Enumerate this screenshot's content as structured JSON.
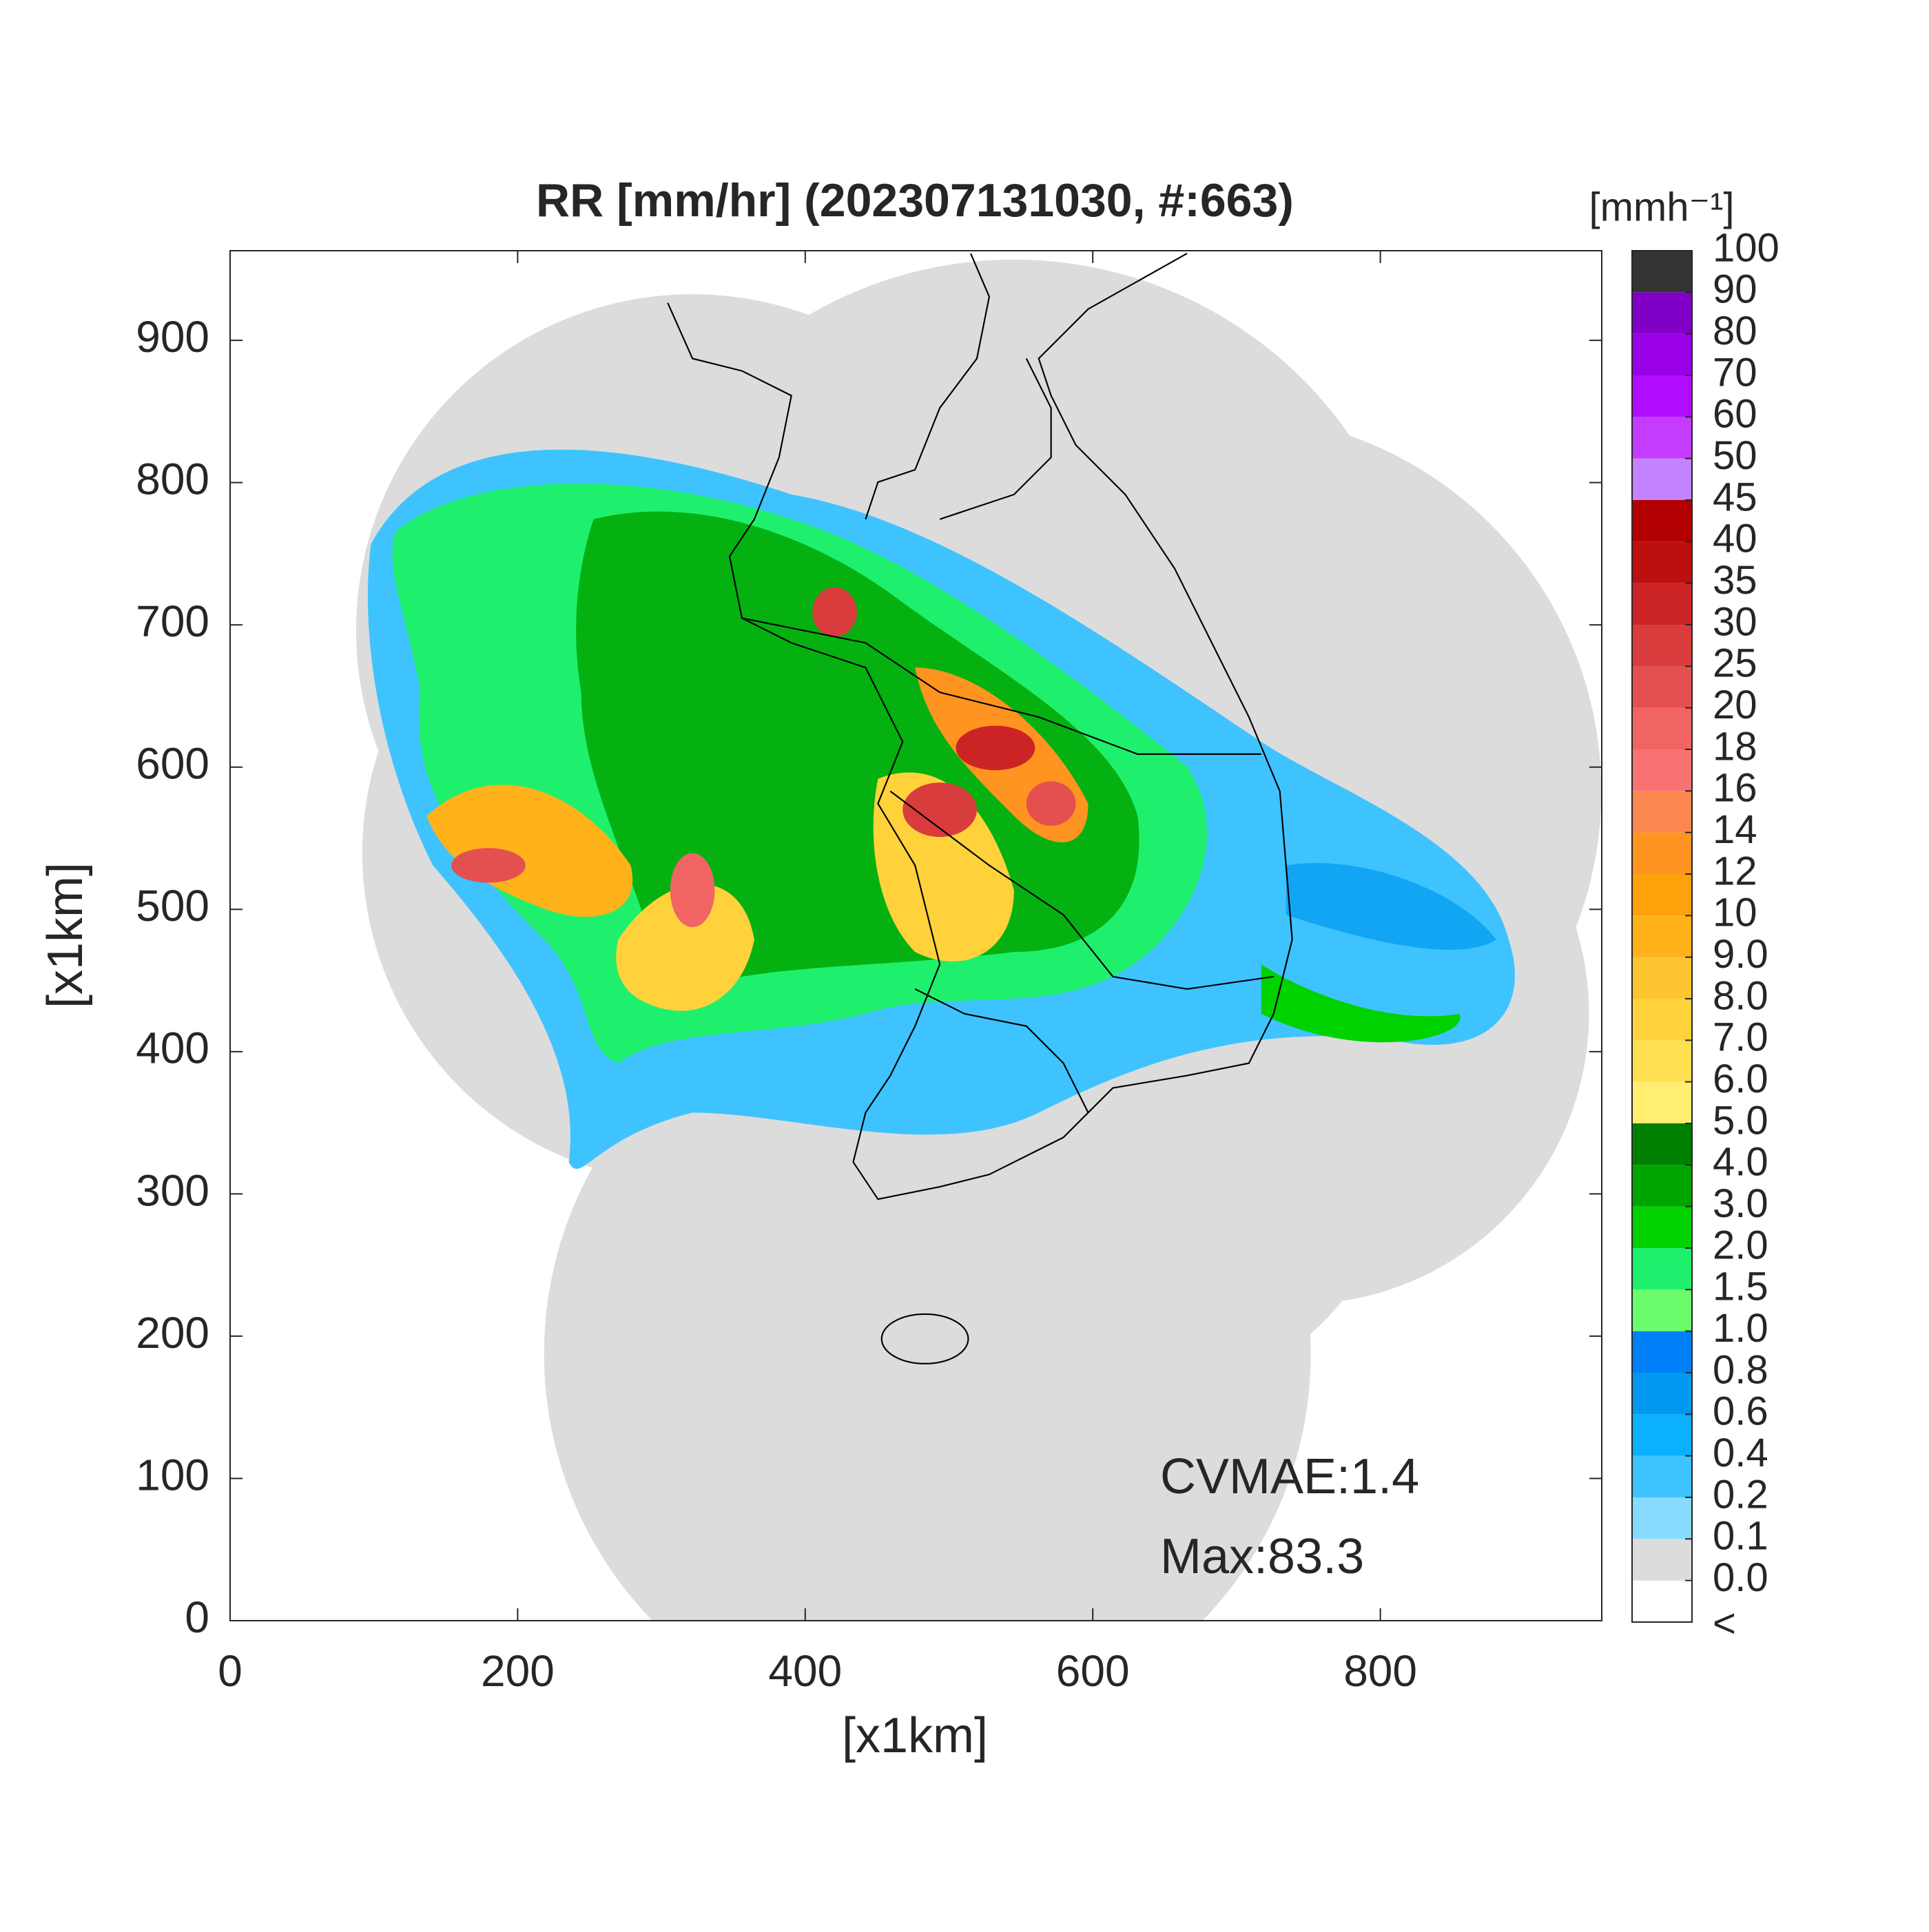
{
  "map": {
    "title": "RR [mm/hr] (202307131030, #:663)",
    "xlabel": "[x1km]",
    "ylabel": "[x1km]",
    "xlim": [
      0,
      954
    ],
    "ylim": [
      0,
      963
    ],
    "xticks": [
      0,
      200,
      400,
      600,
      800
    ],
    "yticks": [
      0,
      100,
      200,
      300,
      400,
      500,
      600,
      700,
      800,
      900
    ],
    "annotations": [
      "CVMAE:1.4",
      "Max:83.3"
    ],
    "colorbar": {
      "label": "[mmh⁻¹]",
      "below_label": "<",
      "below_color": "#ffffff",
      "levels": [
        {
          "value": 0,
          "label": "0.0"
        },
        0.1,
        0.2,
        0.4,
        0.6,
        0.8,
        {
          "value": 1,
          "label": "1.0"
        },
        1.5,
        {
          "value": 2,
          "label": "2.0"
        },
        {
          "value": 3,
          "label": "3.0"
        },
        {
          "value": 4,
          "label": "4.0"
        },
        {
          "value": 5,
          "label": "5.0"
        },
        {
          "value": 6,
          "label": "6.0"
        },
        {
          "value": 7,
          "label": "7.0"
        },
        {
          "value": 8,
          "label": "8.0"
        },
        {
          "value": 9,
          "label": "9.0"
        },
        10,
        12,
        14,
        16,
        18,
        20,
        25,
        30,
        35,
        40,
        45,
        50,
        60,
        70,
        80,
        90,
        100
      ],
      "colors": [
        "#dcdcdc",
        "#87dbff",
        "#3fc3ff",
        "#0bb0ff",
        "#0098f0",
        "#0080f8",
        "#6afc6a",
        "#1ef06e",
        "#00d200",
        "#00a600",
        "#007f00",
        "#ffee70",
        "#ffe050",
        "#ffd23c",
        "#fcc530",
        "#ffb21a",
        "#ffa10a",
        "#ff9420",
        "#fa8850",
        "#f87272",
        "#f06464",
        "#e45050",
        "#d83c3c",
        "#cc2424",
        "#bc1010",
        "#b20000",
        "#c483ff",
        "#c43cff",
        "#b00cff",
        "#9900e6",
        "#8000c8",
        "#333333"
      ]
    }
  }
}
